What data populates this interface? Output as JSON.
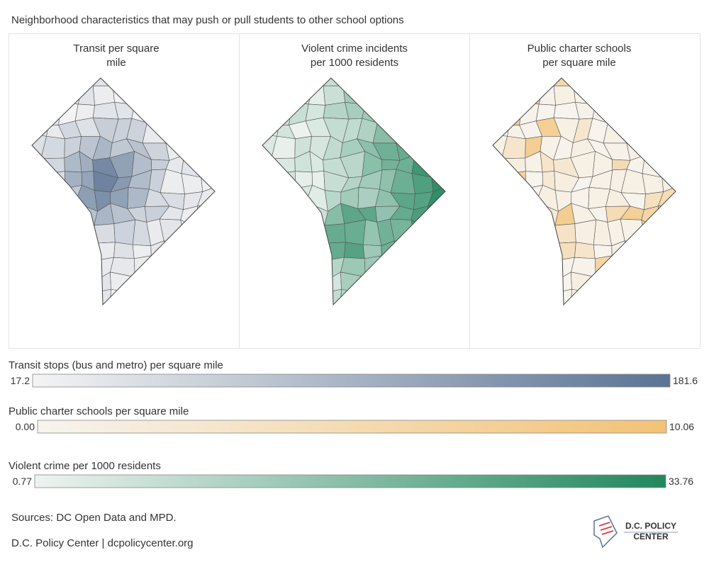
{
  "title": "Neighborhood characteristics that may push or pull students to other school options",
  "panels": [
    {
      "title_lines": [
        "Transit per square",
        "mile"
      ],
      "legend": 0
    },
    {
      "title_lines": [
        "Violent crime incidents",
        "per 1000 residents"
      ],
      "legend": 2
    },
    {
      "title_lines": [
        "Public charter schools",
        "per square mile"
      ],
      "legend": 1
    }
  ],
  "legends": [
    {
      "title": "Transit stops (bus and metro) per square mile",
      "min": "17.2",
      "max": "181.6",
      "colors": [
        "#f4f4f4",
        "#5a7394"
      ]
    },
    {
      "title": "Public charter schools per square mile",
      "min": "0.00",
      "max": "10.06",
      "colors": [
        "#f7f4ef",
        "#f3c276"
      ]
    },
    {
      "title": "Violent crime per 1000 residents",
      "min": "0.77",
      "max": "33.76",
      "colors": [
        "#eef3f0",
        "#21875f"
      ]
    }
  ],
  "sources": "Sources: DC Open Data and MPD.",
  "credit": "D.C. Policy Center | dcpolicycenter.org",
  "logo": {
    "line1": "D.C. POLICY",
    "line2": "CENTER"
  }
}
